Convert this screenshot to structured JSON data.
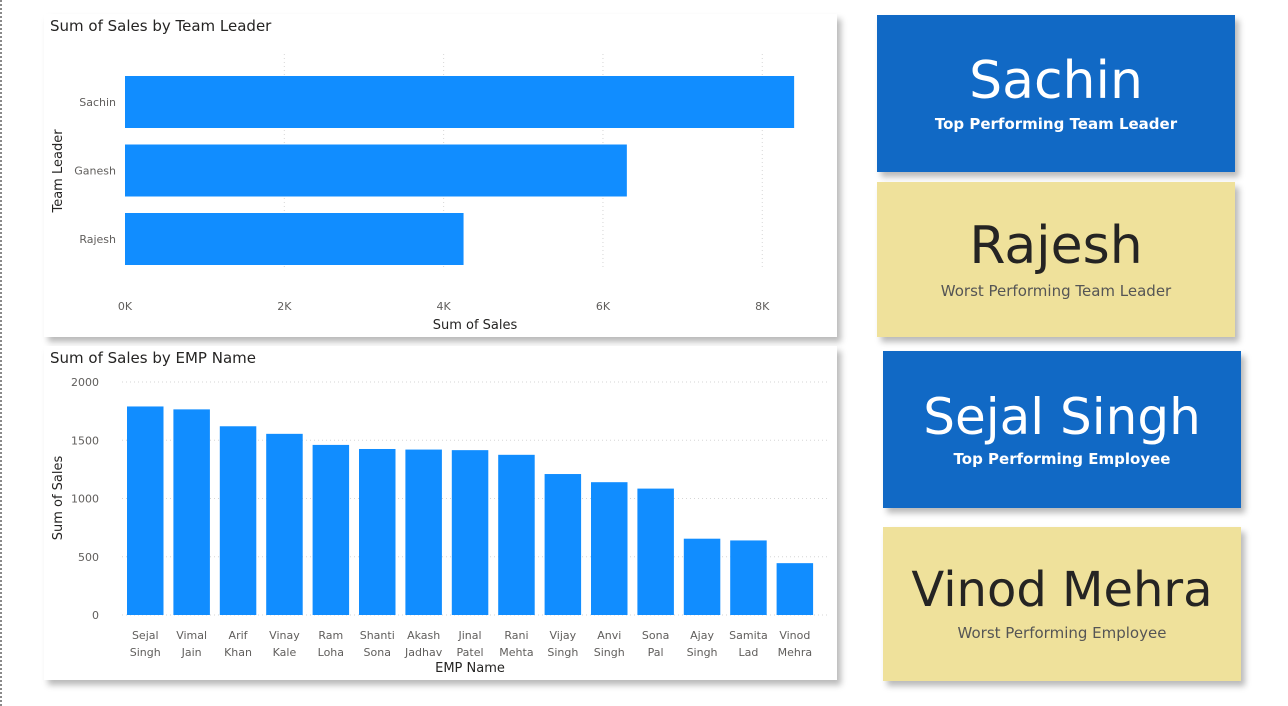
{
  "chart_data": [
    {
      "type": "bar",
      "orientation": "horizontal",
      "title": "Sum of Sales by Team Leader",
      "xlabel": "Sum of Sales",
      "ylabel": "Team Leader",
      "categories": [
        "Sachin",
        "Ganesh",
        "Rajesh"
      ],
      "values": [
        8400,
        6300,
        4250
      ],
      "xlim": [
        0,
        8800
      ],
      "xticks": [
        0,
        2000,
        4000,
        6000,
        8000
      ],
      "xtick_labels": [
        "0K",
        "2K",
        "4K",
        "6K",
        "8K"
      ],
      "grid": true,
      "bar_color": "#118dff"
    },
    {
      "type": "bar",
      "orientation": "vertical",
      "title": "Sum of Sales by EMP Name",
      "xlabel": "EMP Name",
      "ylabel": "Sum of Sales",
      "categories": [
        [
          "Sejal",
          "Singh"
        ],
        [
          "Vimal",
          "Jain"
        ],
        [
          "Arif",
          "Khan"
        ],
        [
          "Vinay",
          "Kale"
        ],
        [
          "Ram",
          "Loha"
        ],
        [
          "Shanti",
          "Sona"
        ],
        [
          "Akash",
          "Jadhav"
        ],
        [
          "Jinal",
          "Patel"
        ],
        [
          "Rani",
          "Mehta"
        ],
        [
          "Vijay",
          "Singh"
        ],
        [
          "Anvi",
          "Singh"
        ],
        [
          "Sona",
          "Pal"
        ],
        [
          "Ajay",
          "Singh"
        ],
        [
          "Samita",
          "Lad"
        ],
        [
          "Vinod",
          "Mehra"
        ]
      ],
      "values": [
        1790,
        1765,
        1620,
        1555,
        1460,
        1425,
        1420,
        1415,
        1375,
        1210,
        1140,
        1085,
        655,
        640,
        445
      ],
      "ylim": [
        0,
        2000
      ],
      "yticks": [
        0,
        500,
        1000,
        1500,
        2000
      ],
      "grid": true,
      "bar_color": "#118dff"
    }
  ],
  "cards": [
    {
      "value": "Sachin",
      "label": "Top Performing Team Leader"
    },
    {
      "value": "Rajesh",
      "label": "Worst Performing Team Leader"
    },
    {
      "value": "Sejal Singh",
      "label": "Top Performing Employee"
    },
    {
      "value": "Vinod Mehra",
      "label": "Worst Performing Employee"
    }
  ],
  "colors": {
    "bar": "#118dff",
    "card_blue": "#1169c5",
    "card_yellow": "#efe19b"
  }
}
